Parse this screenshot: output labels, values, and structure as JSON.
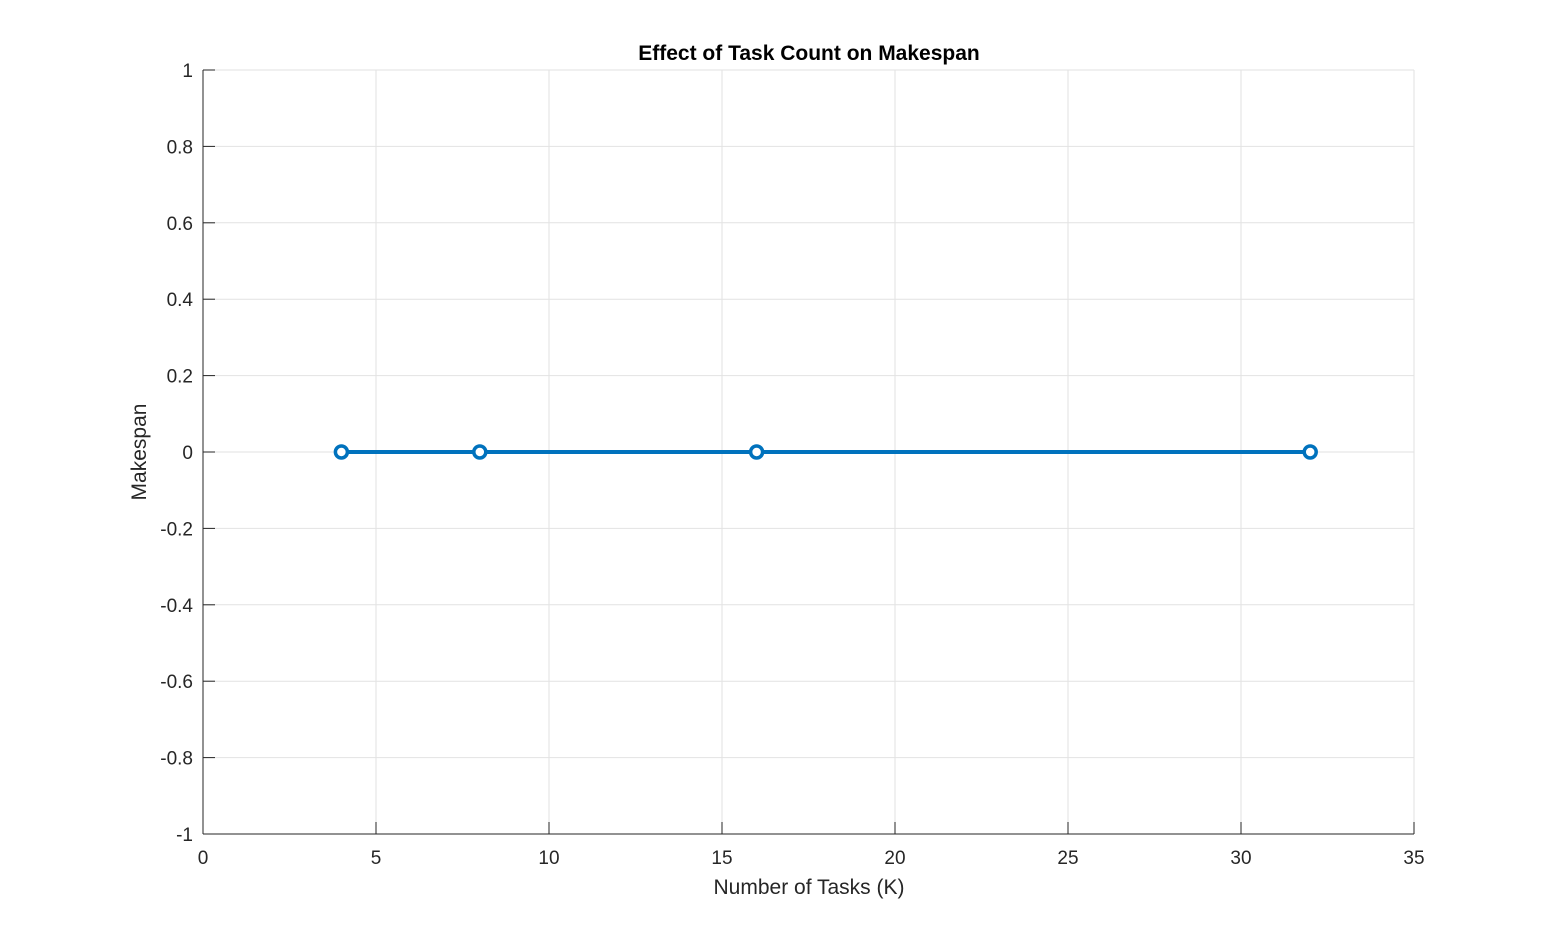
{
  "chart_data": {
    "type": "line",
    "title": "Effect of Task Count on Makespan",
    "xlabel": "Number of Tasks (K)",
    "ylabel": "Makespan",
    "xlim": [
      0,
      35
    ],
    "ylim": [
      -1,
      1
    ],
    "xticks": [
      0,
      5,
      10,
      15,
      20,
      25,
      30,
      35
    ],
    "yticks": [
      -1,
      -0.8,
      -0.6,
      -0.4,
      -0.2,
      0,
      0.2,
      0.4,
      0.6,
      0.8,
      1
    ],
    "xtick_labels": [
      "0",
      "5",
      "10",
      "15",
      "20",
      "25",
      "30",
      "35"
    ],
    "ytick_labels": [
      "-1",
      "-0.8",
      "-0.6",
      "-0.4",
      "-0.2",
      "0",
      "0.2",
      "0.4",
      "0.6",
      "0.8",
      "1"
    ],
    "grid": true,
    "series": [
      {
        "x": [
          4,
          8,
          16,
          32
        ],
        "values": [
          0,
          0,
          0,
          0
        ],
        "color": "#0072BD",
        "marker": "circle"
      }
    ]
  }
}
